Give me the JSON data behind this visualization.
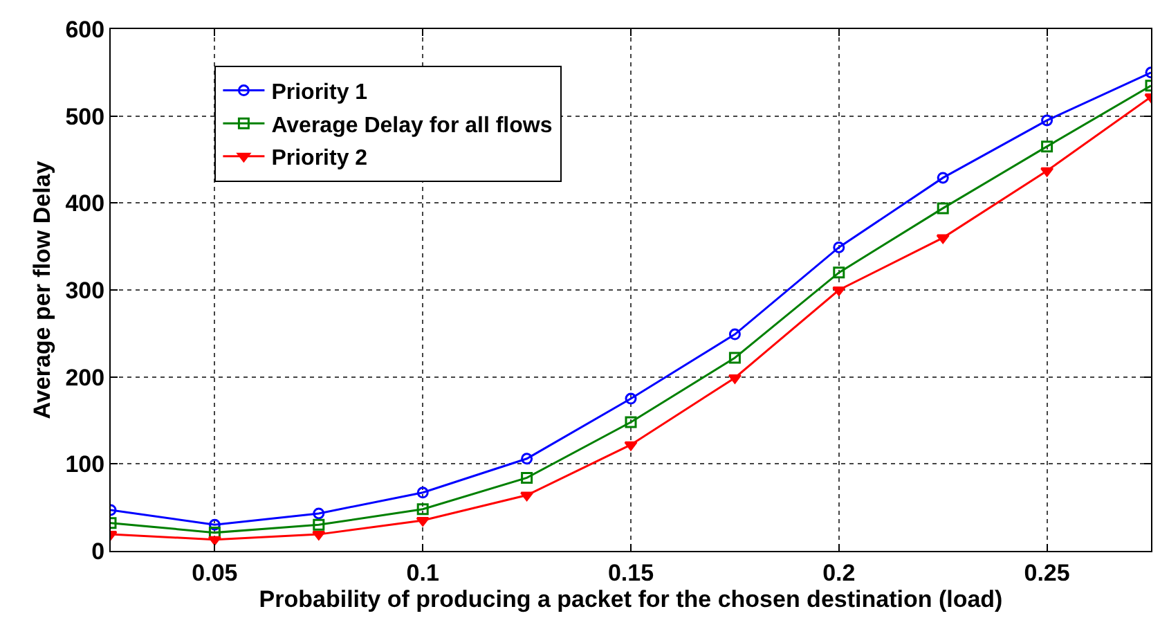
{
  "chart_data": {
    "type": "line",
    "xlabel": "Probability of producing a packet for the chosen destination (load)",
    "ylabel": "Average per flow Delay",
    "x": [
      0.025,
      0.05,
      0.075,
      0.1,
      0.125,
      0.15,
      0.175,
      0.2,
      0.225,
      0.25,
      0.275
    ],
    "series": [
      {
        "name": "Priority 1",
        "color": "#0000ff",
        "marker": "circle",
        "values": [
          47,
          30,
          43,
          67,
          106,
          175,
          249,
          349,
          429,
          495,
          550
        ]
      },
      {
        "name": "Average Delay for all flows",
        "color": "#008000",
        "marker": "square",
        "values": [
          32,
          21,
          30,
          48,
          84,
          148,
          222,
          320,
          394,
          465,
          535
        ]
      },
      {
        "name": "Priority 2",
        "color": "#ff0000",
        "marker": "triangle",
        "values": [
          19,
          13,
          19,
          35,
          64,
          122,
          199,
          300,
          360,
          437,
          522
        ]
      }
    ],
    "xlim": [
      0.025,
      0.275
    ],
    "xticks": [
      0.05,
      0.1,
      0.15,
      0.2,
      0.25
    ],
    "ylim": [
      0,
      600
    ],
    "yticks": [
      0,
      100,
      200,
      300,
      400,
      500,
      600
    ],
    "grid": true,
    "legend": "top left",
    "line_style": "solid"
  }
}
